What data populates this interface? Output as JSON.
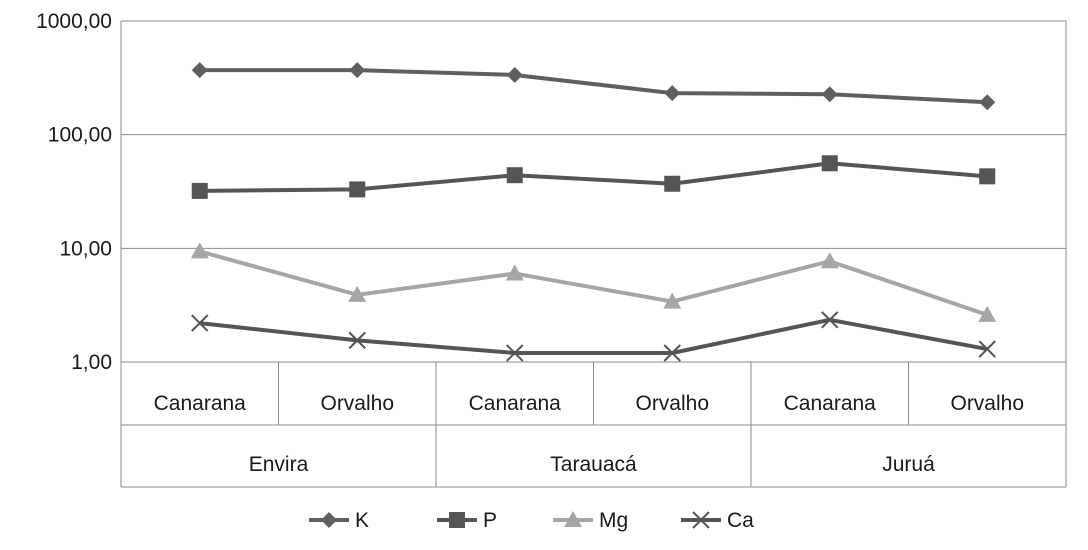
{
  "chart_data": {
    "type": "line",
    "y_scale": "log",
    "ylim": [
      1,
      1000
    ],
    "y_ticks": [
      "1,00",
      "10,00",
      "100,00",
      "1000,00"
    ],
    "categories": [
      "Canarana",
      "Orvalho",
      "Canarana",
      "Orvalho",
      "Canarana",
      "Orvalho"
    ],
    "groups": [
      "Envira",
      "Tarauacá",
      "Juruá"
    ],
    "grid": true,
    "legend_position": "bottom",
    "series": [
      {
        "name": "K",
        "marker": "diamond",
        "color": "#5f5f5f",
        "values": [
          370,
          370,
          335,
          232,
          227,
          193
        ]
      },
      {
        "name": "P",
        "marker": "square",
        "color": "#555555",
        "values": [
          32,
          33,
          44,
          37,
          56,
          43
        ]
      },
      {
        "name": "Mg",
        "marker": "triangle",
        "color": "#a6a6a6",
        "values": [
          9.4,
          3.9,
          6.0,
          3.4,
          7.7,
          2.6
        ]
      },
      {
        "name": "Ca",
        "marker": "x",
        "color": "#555555",
        "values": [
          2.2,
          1.55,
          1.2,
          1.2,
          2.35,
          1.3
        ]
      }
    ]
  }
}
